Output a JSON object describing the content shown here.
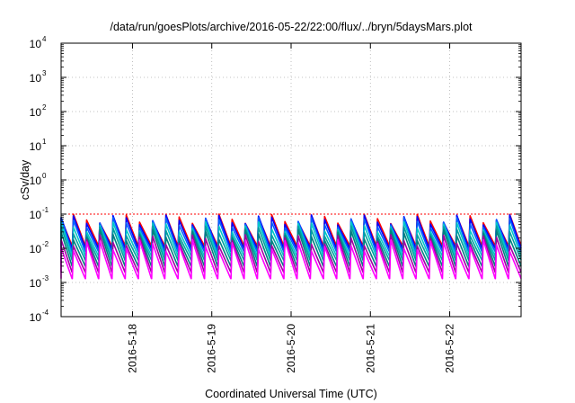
{
  "chart_data": {
    "type": "line",
    "title": "/data/run/goesPlots/archive/2016-05-22/22:00/flux/../bryn/5daysMars.plot",
    "xlabel": "Coordinated Universal Time (UTC)",
    "ylabel": "cSv/day",
    "y_scale": "log",
    "ylim_exponents": [
      -4,
      4
    ],
    "y_tick_exponents": [
      -4,
      -3,
      -2,
      -1,
      0,
      1,
      2,
      3,
      4
    ],
    "y_tick_base": "10",
    "xlim_days": [
      17.1,
      22.9
    ],
    "x_ticks": [
      {
        "day": 18,
        "label": "2016-5-18"
      },
      {
        "day": 19,
        "label": "2016-5-19"
      },
      {
        "day": 20,
        "label": "2016-5-20"
      },
      {
        "day": 21,
        "label": "2016-5-21"
      },
      {
        "day": 22,
        "label": "2016-5-22"
      }
    ],
    "grid": true,
    "reference_line_value": 0.1,
    "reference_line_color": "#ff0000",
    "sawtooth_period_days": 0.1667,
    "series": [
      {
        "color": "#ff0000",
        "peak": 0.1,
        "trough": 0.012
      },
      {
        "color": "#0000ff",
        "peak": 0.095,
        "trough": 0.01
      },
      {
        "color": "#0060ff",
        "peak": 0.08,
        "trough": 0.008
      },
      {
        "color": "#00c8c8",
        "peak": 0.06,
        "trough": 0.006
      },
      {
        "color": "#00a0a0",
        "peak": 0.045,
        "trough": 0.0045
      },
      {
        "color": "#008080",
        "peak": 0.035,
        "trough": 0.003
      },
      {
        "color": "#a000a0",
        "peak": 0.025,
        "trough": 0.002
      },
      {
        "color": "#ff00ff",
        "peak": 0.018,
        "trough": 0.0013
      }
    ]
  }
}
